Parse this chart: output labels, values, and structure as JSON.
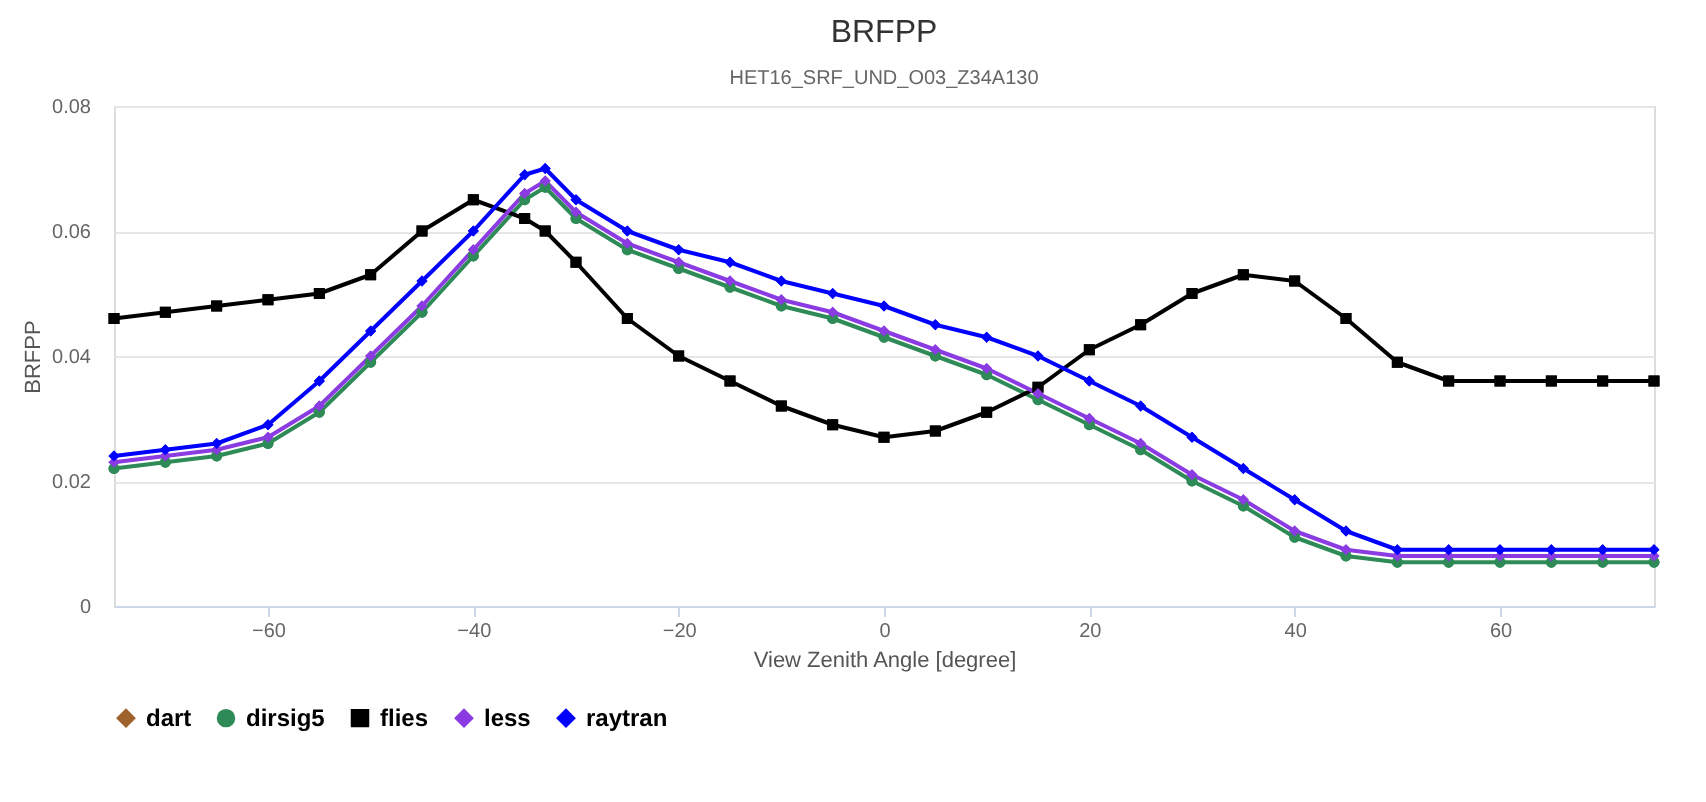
{
  "chart_data": {
    "type": "line",
    "title": "BRFPP",
    "subtitle": "HET16_SRF_UND_O03_Z34A130",
    "xlabel": "View Zenith Angle [degree]",
    "ylabel": "BRFPP",
    "x": [
      -75,
      -70,
      -65,
      -60,
      -55,
      -50,
      -45,
      -40,
      -35,
      -33,
      -30,
      -25,
      -20,
      -15,
      -10,
      -5,
      0,
      5,
      10,
      15,
      20,
      25,
      30,
      35,
      40,
      45,
      50,
      55,
      60,
      65,
      70,
      75
    ],
    "series": [
      {
        "name": "dart",
        "color": "#a0622d",
        "marker": "diamond",
        "values": [
          null,
          null,
          null,
          null,
          null,
          null,
          null,
          null,
          null,
          null,
          null,
          null,
          null,
          null,
          null,
          null,
          null,
          null,
          null,
          null,
          null,
          null,
          null,
          null,
          null,
          null,
          null,
          null,
          null,
          null,
          null,
          null
        ]
      },
      {
        "name": "dirsig5",
        "color": "#2e8b57",
        "marker": "circle",
        "values": [
          0.022,
          0.023,
          0.024,
          0.026,
          0.031,
          0.039,
          0.047,
          0.056,
          0.065,
          0.067,
          0.062,
          0.057,
          0.054,
          0.051,
          0.048,
          0.046,
          0.043,
          0.04,
          0.037,
          0.033,
          0.029,
          0.025,
          0.02,
          0.016,
          0.011,
          0.008,
          0.007,
          0.007,
          0.007,
          0.007,
          0.007,
          0.007
        ]
      },
      {
        "name": "flies",
        "color": "#000000",
        "marker": "square",
        "values": [
          0.046,
          0.047,
          0.048,
          0.049,
          0.05,
          0.053,
          0.06,
          0.065,
          0.062,
          0.06,
          0.055,
          0.046,
          0.04,
          0.036,
          0.032,
          0.029,
          0.027,
          0.028,
          0.031,
          0.035,
          0.041,
          0.045,
          0.05,
          0.053,
          0.052,
          0.046,
          0.039,
          0.036,
          0.036,
          0.036,
          0.036,
          0.036
        ]
      },
      {
        "name": "less",
        "color": "#8a3be2",
        "marker": "diamond",
        "values": [
          0.023,
          0.024,
          0.025,
          0.027,
          0.032,
          0.04,
          0.048,
          0.057,
          0.066,
          0.068,
          0.063,
          0.058,
          0.055,
          0.052,
          0.049,
          0.047,
          0.044,
          0.041,
          0.038,
          0.034,
          0.03,
          0.026,
          0.021,
          0.017,
          0.012,
          0.009,
          0.008,
          0.008,
          0.008,
          0.008,
          0.008,
          0.008
        ]
      },
      {
        "name": "raytran",
        "color": "#0000ff",
        "marker": "diamond",
        "values": [
          0.024,
          0.025,
          0.026,
          0.029,
          0.036,
          0.044,
          0.052,
          0.06,
          0.069,
          0.07,
          0.065,
          0.06,
          0.057,
          0.055,
          0.052,
          0.05,
          0.048,
          0.045,
          0.043,
          0.04,
          0.036,
          0.032,
          0.027,
          0.022,
          0.017,
          0.012,
          0.009,
          0.009,
          0.009,
          0.009,
          0.009,
          0.009
        ]
      }
    ],
    "xlim": [
      -75,
      75
    ],
    "xticks": [
      -60,
      -40,
      -20,
      0,
      20,
      40,
      60
    ],
    "ylim": [
      0,
      0.08
    ],
    "yticks": [
      0,
      0.02,
      0.04,
      0.06,
      0.08
    ],
    "grid": "y",
    "legend": "bottom",
    "line_style": "solid"
  }
}
